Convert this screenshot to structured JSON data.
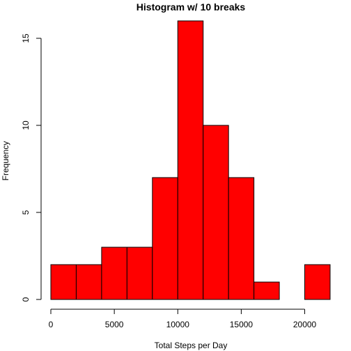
{
  "chart_data": {
    "type": "bar",
    "title": "Histogram w/ 10 breaks",
    "xlabel": "Total Steps per Day",
    "ylabel": "Frequency",
    "bin_edges": [
      0,
      2000,
      4000,
      6000,
      8000,
      10000,
      12000,
      14000,
      16000,
      18000,
      20000,
      22000
    ],
    "values": [
      2,
      2,
      3,
      3,
      7,
      16,
      10,
      7,
      1,
      0,
      2
    ],
    "xlim": [
      0,
      22000
    ],
    "ylim": [
      0,
      16
    ],
    "x_ticks": [
      0,
      5000,
      10000,
      15000,
      20000
    ],
    "y_ticks": [
      0,
      5,
      10,
      15
    ],
    "bar_color": "#ff0000",
    "grid": false
  }
}
